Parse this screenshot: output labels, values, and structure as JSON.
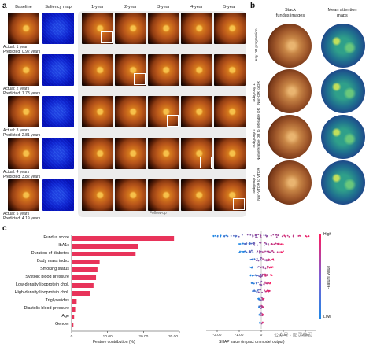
{
  "panel_a": {
    "letter": "a",
    "col_headers": {
      "baseline": "Baseline",
      "saliency": "Saliency map",
      "years": [
        "1-year",
        "2-year",
        "3-year",
        "4-year",
        "5-year"
      ]
    },
    "rows": [
      {
        "actual": "Actual: 1 year",
        "predicted": "Predicted: 0.92 years"
      },
      {
        "actual": "Actual: 2 years",
        "predicted": "Predicted: 1.78 years"
      },
      {
        "actual": "Actual: 3 years",
        "predicted": "Predicted: 2.81 years"
      },
      {
        "actual": "Actual: 4 years",
        "predicted": "Predicted: 3.82 years"
      },
      {
        "actual": "Actual: 5 years",
        "predicted": "Predicted: 4.19 years"
      }
    ],
    "follow_up": "Follow-up"
  },
  "panel_b": {
    "letter": "b",
    "col_headers": {
      "stack": "Stack\nfundus images",
      "attn": "Mean attention\nmaps"
    },
    "rows": [
      {
        "label1": "Any DR progression",
        "label2": ""
      },
      {
        "label1": "Subgroup 1",
        "label2": "Non-DR to DR"
      },
      {
        "label1": "Subgroup 2",
        "label2": "Nonreferable DR to referable DR"
      },
      {
        "label1": "Subgroup 3",
        "label2": "Non-VTDR to VTDR"
      }
    ]
  },
  "panel_c": {
    "letter": "c",
    "xlabel_bar": "Feature contribution (%)",
    "xlabel_shap": "SHAP value (impact on model output)",
    "colorbar": {
      "high": "High",
      "low": "Low",
      "label": "Feature value"
    },
    "watermark": "公众号 · 图灵基因"
  },
  "chart_data": [
    {
      "type": "bar",
      "orientation": "horizontal",
      "categories": [
        "Fundus score",
        "HbA1c",
        "Duration of diabetes",
        "Body mass index",
        "Smoking status",
        "Systolic blood pressure",
        "Low-density lipoprotein chol.",
        "High-density lipoprotein chol.",
        "Triglycerides",
        "Diastolic blood pressure",
        "Age",
        "Gender"
      ],
      "values": [
        28.5,
        18.5,
        17.8,
        7.8,
        7.2,
        6.8,
        6.1,
        5.2,
        1.4,
        1.0,
        0.7,
        0.5
      ],
      "xlabel": "Feature contribution (%)",
      "xlim": [
        0,
        30
      ],
      "xticks": [
        "0",
        "10.00",
        "20.00",
        "30.00"
      ],
      "color": "#e8335a"
    },
    {
      "type": "scatter",
      "subtype": "shap-beeswarm",
      "xlabel": "SHAP value (impact on model output)",
      "xlim": [
        -2.5,
        2.5
      ],
      "xticks": [
        "-2.00",
        "-1.00",
        "0",
        "1.00",
        "2.00"
      ],
      "colorbar": [
        "High",
        "Low"
      ]
    }
  ]
}
